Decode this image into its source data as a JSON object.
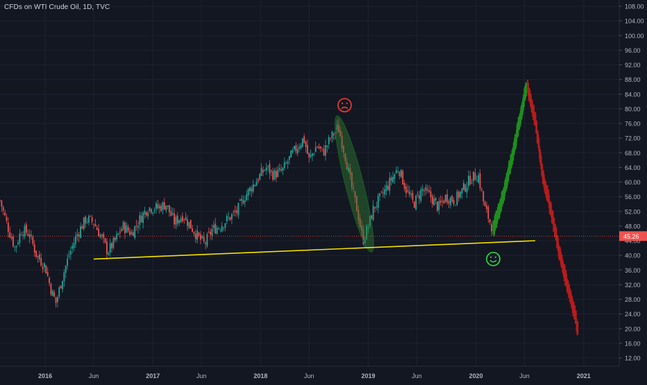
{
  "header": {
    "title": "CFDs on WTI Crude Oil, 1D, TVC"
  },
  "colors": {
    "background": "#131722",
    "grid": "#1e2230",
    "up_candle": "#26a69a",
    "down_candle": "#ef5350",
    "price_line": "#ef5350",
    "support_line": "#f5e100",
    "projection_up": "#1e8f1e",
    "projection_down": "#b71c1c",
    "highlight_ellipse": "#2e7d32",
    "sad_face": "#e53935",
    "happy_face": "#2ecc40",
    "axis_text": "#b2b5be"
  },
  "chart_data": {
    "type": "line",
    "title": "CFDs on WTI Crude Oil, 1D, TVC",
    "xlabel": "",
    "ylabel": "",
    "ylim": [
      9,
      110
    ],
    "x_range": [
      2015.58,
      2021.33
    ],
    "x_ticks": [
      {
        "label": "2016",
        "t": 2016.0
      },
      {
        "label": "Jun",
        "t": 2016.45
      },
      {
        "label": "2017",
        "t": 2017.0
      },
      {
        "label": "Jun",
        "t": 2017.45
      },
      {
        "label": "2018",
        "t": 2018.0
      },
      {
        "label": "Jun",
        "t": 2018.45
      },
      {
        "label": "2019",
        "t": 2019.0
      },
      {
        "label": "Jun",
        "t": 2019.45
      },
      {
        "label": "2020",
        "t": 2020.0
      },
      {
        "label": "Jun",
        "t": 2020.45
      },
      {
        "label": "2021",
        "t": 2021.0
      }
    ],
    "y_ticks": [
      12,
      16,
      20,
      24,
      28,
      32,
      36,
      40,
      44,
      48,
      52,
      56,
      60,
      64,
      68,
      72,
      76,
      80,
      84,
      88,
      92,
      96,
      100,
      104,
      108
    ],
    "current_price": {
      "value": 45.26,
      "label": "45.26"
    },
    "series": [
      {
        "name": "",
        "values": [
          [
            2015.58,
            55
          ],
          [
            2015.65,
            48
          ],
          [
            2015.72,
            42
          ],
          [
            2015.78,
            47
          ],
          [
            2015.85,
            46
          ],
          [
            2015.92,
            40
          ],
          [
            2016.0,
            37
          ],
          [
            2016.05,
            31
          ],
          [
            2016.1,
            27
          ],
          [
            2016.15,
            33
          ],
          [
            2016.22,
            40
          ],
          [
            2016.3,
            46
          ],
          [
            2016.38,
            50
          ],
          [
            2016.45,
            49
          ],
          [
            2016.52,
            45
          ],
          [
            2016.58,
            41
          ],
          [
            2016.65,
            44
          ],
          [
            2016.72,
            48
          ],
          [
            2016.8,
            46
          ],
          [
            2016.88,
            50
          ],
          [
            2016.95,
            53
          ],
          [
            2017.05,
            53
          ],
          [
            2017.12,
            54
          ],
          [
            2017.2,
            49
          ],
          [
            2017.28,
            51
          ],
          [
            2017.35,
            48
          ],
          [
            2017.42,
            45
          ],
          [
            2017.48,
            43
          ],
          [
            2017.55,
            47
          ],
          [
            2017.62,
            48
          ],
          [
            2017.7,
            50
          ],
          [
            2017.78,
            52
          ],
          [
            2017.85,
            56
          ],
          [
            2017.95,
            60
          ],
          [
            2018.05,
            64
          ],
          [
            2018.12,
            62
          ],
          [
            2018.2,
            63
          ],
          [
            2018.28,
            67
          ],
          [
            2018.35,
            70
          ],
          [
            2018.4,
            72
          ],
          [
            2018.45,
            66
          ],
          [
            2018.52,
            70
          ],
          [
            2018.58,
            68
          ],
          [
            2018.65,
            72
          ],
          [
            2018.72,
            75
          ],
          [
            2018.78,
            68
          ],
          [
            2018.85,
            58
          ],
          [
            2018.9,
            52
          ],
          [
            2018.95,
            44
          ],
          [
            2019.0,
            48
          ],
          [
            2019.05,
            53
          ],
          [
            2019.12,
            56
          ],
          [
            2019.2,
            60
          ],
          [
            2019.28,
            64
          ],
          [
            2019.35,
            58
          ],
          [
            2019.42,
            54
          ],
          [
            2019.5,
            58
          ],
          [
            2019.58,
            56
          ],
          [
            2019.65,
            53
          ],
          [
            2019.72,
            56
          ],
          [
            2019.8,
            55
          ],
          [
            2019.88,
            58
          ],
          [
            2019.95,
            61
          ],
          [
            2020.02,
            62
          ],
          [
            2020.08,
            53
          ],
          [
            2020.12,
            50
          ],
          [
            2020.16,
            47
          ]
        ]
      },
      {
        "name": "",
        "values": [
          [
            2020.16,
            47
          ],
          [
            2020.25,
            56
          ],
          [
            2020.33,
            66
          ],
          [
            2020.4,
            76
          ],
          [
            2020.47,
            86
          ]
        ]
      },
      {
        "name": "",
        "values": [
          [
            2020.48,
            86
          ],
          [
            2020.55,
            77
          ],
          [
            2020.62,
            62
          ],
          [
            2020.7,
            52
          ],
          [
            2020.78,
            40
          ],
          [
            2020.85,
            32
          ],
          [
            2020.92,
            24
          ],
          [
            2020.95,
            19
          ]
        ]
      },
      {
        "name": "",
        "values": [
          [
            2016.45,
            39
          ],
          [
            2020.55,
            44
          ]
        ]
      }
    ],
    "grid": true,
    "legend": "none"
  },
  "annotations": {
    "sad_face": {
      "t": 2018.78,
      "price": 81
    },
    "happy_face": {
      "t": 2020.16,
      "price": 39
    },
    "ellipse": {
      "t_start": 2018.72,
      "t_end": 2019.02,
      "price_top": 77,
      "price_bottom": 42
    }
  }
}
